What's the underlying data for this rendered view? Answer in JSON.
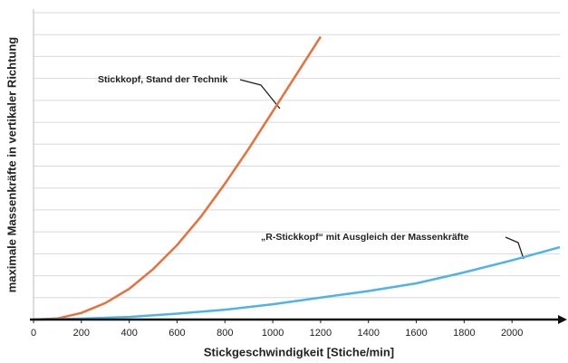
{
  "chart_data": {
    "type": "line",
    "x_label": "Stickgeschwindigkeit [Stiche/min]",
    "y_label": "maximale Massenkräfte in vertikaler Richtung",
    "xlim": [
      0,
      2200
    ],
    "xticks": [
      0,
      200,
      400,
      600,
      800,
      1000,
      1200,
      1400,
      1600,
      1800,
      2000
    ],
    "ylim": [
      0,
      14
    ],
    "yticks": [
      0,
      1,
      2,
      3,
      4,
      5,
      6,
      7,
      8,
      9,
      10,
      11,
      12,
      13,
      14
    ],
    "grid": true,
    "series": [
      {
        "name": "Stickkopf, Stand der Technik",
        "color": "#e8703a",
        "x": [
          0,
          100,
          200,
          300,
          400,
          500,
          600,
          700,
          800,
          900,
          1000,
          1100,
          1200
        ],
        "values": [
          0,
          0.05,
          0.3,
          0.75,
          1.4,
          2.3,
          3.4,
          4.7,
          6.2,
          7.8,
          9.5,
          11.2,
          12.9
        ]
      },
      {
        "name": "„R-Stickkopf“ mit Ausgleich der Massenkräfte",
        "color": "#4fb3ea",
        "x": [
          0,
          200,
          400,
          600,
          800,
          1000,
          1200,
          1400,
          1600,
          1800,
          2000,
          2200
        ],
        "values": [
          0,
          0.04,
          0.12,
          0.27,
          0.45,
          0.7,
          1.0,
          1.3,
          1.65,
          2.15,
          2.7,
          3.3
        ]
      }
    ]
  }
}
